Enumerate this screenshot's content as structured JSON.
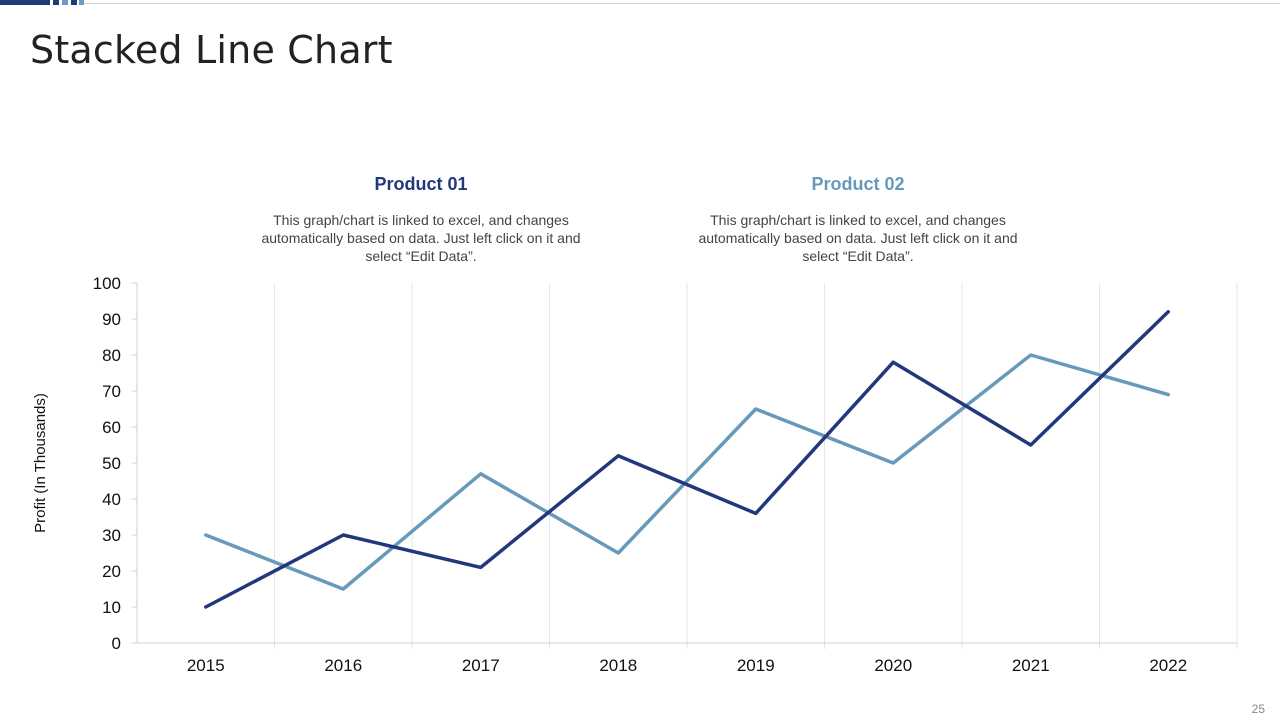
{
  "page": {
    "title": "Stacked Line Chart",
    "page_number": "25",
    "accent_colors": [
      "#1f3a7a",
      "#6a9cc0"
    ]
  },
  "legend": [
    {
      "name": "Product 01",
      "color": "#23377c",
      "description": "This graph/chart is linked to excel, and changes automatically based on data. Just left click on it and select “Edit Data”."
    },
    {
      "name": "Product 02",
      "color": "#6799bb",
      "description": "This graph/chart is linked to excel, and changes automatically based on data. Just left click on it and select “Edit Data”."
    }
  ],
  "chart_data": {
    "type": "line",
    "title": "",
    "xlabel": "",
    "ylabel": "Profit (In Thousands)",
    "ylim": [
      0,
      100
    ],
    "yticks": [
      0,
      10,
      20,
      30,
      40,
      50,
      60,
      70,
      80,
      90,
      100
    ],
    "categories": [
      "2015",
      "2016",
      "2017",
      "2018",
      "2019",
      "2020",
      "2021",
      "2022"
    ],
    "grid": "vertical",
    "series": [
      {
        "name": "Product 01",
        "color": "#23377c",
        "values": [
          10,
          30,
          21,
          52,
          36,
          78,
          55,
          92
        ]
      },
      {
        "name": "Product 02",
        "color": "#6799bb",
        "values": [
          30,
          15,
          47,
          25,
          65,
          50,
          80,
          69
        ]
      }
    ]
  }
}
